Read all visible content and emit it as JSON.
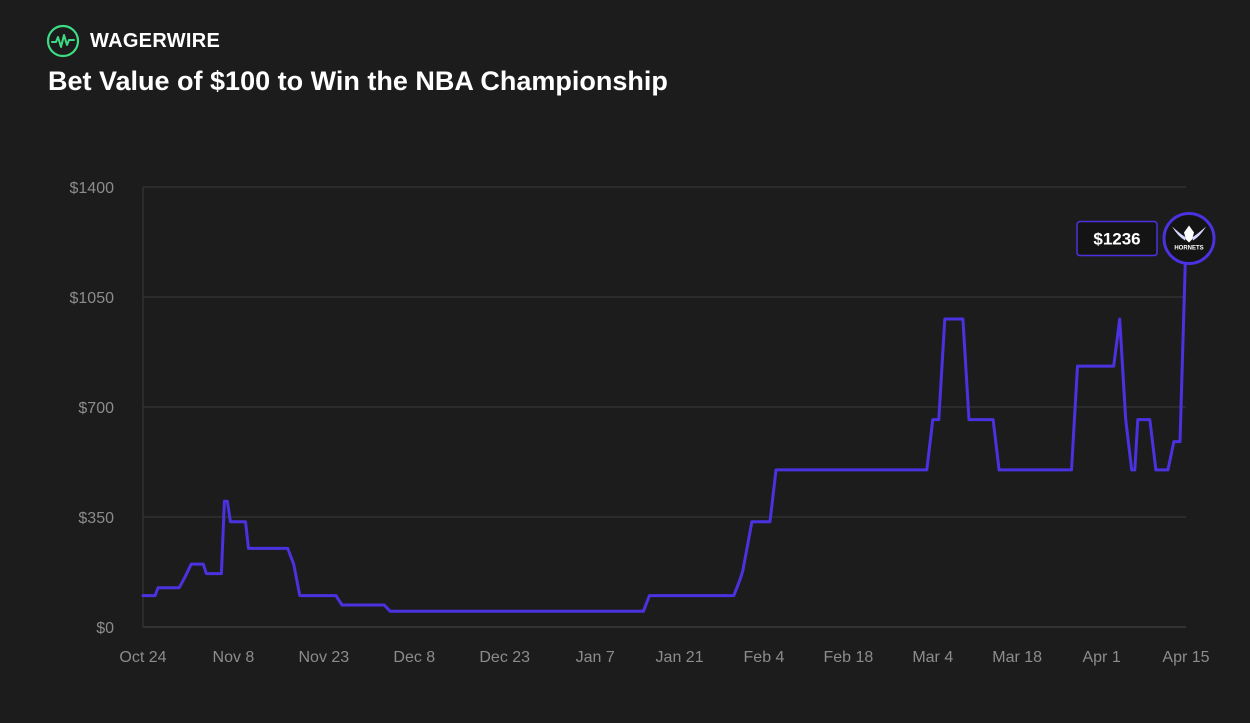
{
  "brand": {
    "name": "WAGERWIRE",
    "logo_icon": "pulse-wave-icon",
    "accent": "#3ddc84"
  },
  "chart_data": {
    "type": "line",
    "title": "Bet Value of $100 to Win the NBA Championship",
    "xlabel": "",
    "ylabel": "",
    "ylim": [
      0,
      1400
    ],
    "y_ticks": [
      {
        "value": 0,
        "label": "$0"
      },
      {
        "value": 350,
        "label": "$350"
      },
      {
        "value": 700,
        "label": "$700"
      },
      {
        "value": 1050,
        "label": "$1050"
      },
      {
        "value": 1400,
        "label": "$1400"
      }
    ],
    "x_ticks": [
      {
        "day": 0,
        "label": "Oct 24"
      },
      {
        "day": 15,
        "label": "Nov 8"
      },
      {
        "day": 30,
        "label": "Nov 23"
      },
      {
        "day": 45,
        "label": "Dec 8"
      },
      {
        "day": 60,
        "label": "Dec 23"
      },
      {
        "day": 75,
        "label": "Jan 7"
      },
      {
        "day": 89,
        "label": "Jan 21"
      },
      {
        "day": 103,
        "label": "Feb 4"
      },
      {
        "day": 117,
        "label": "Feb 18"
      },
      {
        "day": 131,
        "label": "Mar 4"
      },
      {
        "day": 145,
        "label": "Mar 18"
      },
      {
        "day": 159,
        "label": "Apr 1"
      },
      {
        "day": 173,
        "label": "Apr 15"
      }
    ],
    "grid": "horizontal",
    "line_color": "#4a32e0",
    "series": [
      {
        "x": [
          0,
          2,
          2.5,
          3,
          6,
          7,
          8,
          10,
          10.5,
          11,
          13,
          13.5,
          14,
          14.5,
          15,
          17,
          17.5,
          19,
          20,
          24,
          25,
          26,
          32,
          33,
          40,
          41,
          83,
          84,
          98,
          99,
          99.5,
          101,
          102,
          104,
          105,
          130,
          131,
          132,
          133,
          133.5,
          136,
          137,
          141,
          142,
          154,
          155,
          161,
          162,
          163,
          164,
          164.5,
          165,
          167,
          168,
          170,
          171,
          172,
          173,
          173.5
        ],
        "y": [
          100,
          100,
          125,
          125,
          125,
          160,
          200,
          200,
          170,
          170,
          170,
          400,
          400,
          335,
          335,
          335,
          250,
          250,
          250,
          250,
          200,
          100,
          100,
          70,
          70,
          50,
          50,
          100,
          100,
          150,
          180,
          335,
          335,
          335,
          500,
          500,
          660,
          660,
          980,
          980,
          980,
          660,
          660,
          500,
          500,
          830,
          830,
          980,
          660,
          500,
          500,
          660,
          660,
          500,
          500,
          590,
          590,
          1236,
          1236
        ]
      }
    ],
    "end_value_label": "$1236",
    "end_badge": {
      "icon": "hornets-logo-icon",
      "text": "HORNETS",
      "border_color": "#4a32e0",
      "fill_color": "#141414"
    }
  }
}
